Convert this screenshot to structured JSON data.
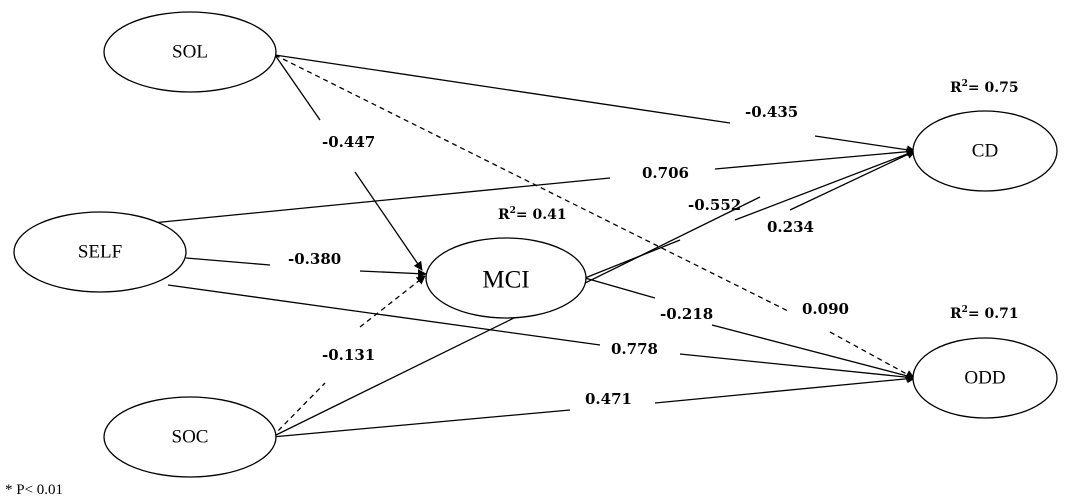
{
  "nodes": {
    "sol": "SOL",
    "self": "SELF",
    "soc": "SOC",
    "mci": "MCI",
    "cd": "CD",
    "odd": "ODD"
  },
  "r_squared": {
    "prefix": "R",
    "sup": "2",
    "mci_value": "= 0.41",
    "cd_value": "= 0.75",
    "odd_value": "= 0.71"
  },
  "paths": {
    "sol_mci": "-0.447",
    "sol_cd": "-0.435",
    "sol_odd": "0.090",
    "self_cd": "0.706",
    "self_mci": "-0.380",
    "self_odd": "0.778",
    "soc_mci": "-0.131",
    "soc_cd": "0.234",
    "soc_odd": "0.471",
    "mci_cd": "-0.552",
    "mci_odd": "-0.218"
  },
  "footnote": "* P< 0.01"
}
